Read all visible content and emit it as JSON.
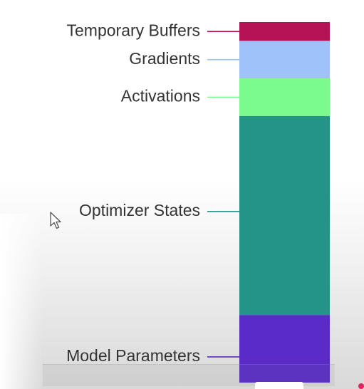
{
  "chart_data": {
    "type": "bar",
    "orientation": "vertical",
    "stacked": true,
    "title": "",
    "xlabel": "",
    "ylabel": "",
    "categories": [
      ""
    ],
    "series": [
      {
        "name": "Model Parameters",
        "values": [
          18
        ],
        "color": "#5a2bc9"
      },
      {
        "name": "Optimizer States",
        "values": [
          53
        ],
        "color": "#249388"
      },
      {
        "name": "Activations",
        "values": [
          10
        ],
        "color": "#7bfb8e"
      },
      {
        "name": "Gradients",
        "values": [
          10
        ],
        "color": "#9fc2fb"
      },
      {
        "name": "Temporary Buffers",
        "values": [
          5
        ],
        "color": "#b51355"
      }
    ],
    "legend": "left, with leader lines",
    "grid": false
  }
}
